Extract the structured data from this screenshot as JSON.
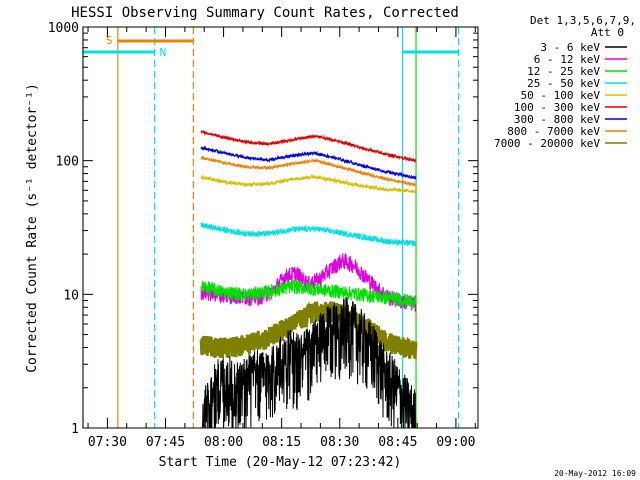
{
  "chart_data": {
    "type": "line",
    "title": "HESSI Observing Summary Count Rates, Corrected",
    "xlabel": "Start Time (20-May-12 07:23:42)",
    "ylabel": "Corrected Count Rate (s⁻¹ detector⁻¹)",
    "x_axis": {
      "unit": "minutes_since_07:23:42",
      "range": [
        0,
        102
      ],
      "ticks": [
        {
          "label": "07:30",
          "value": 6.3
        },
        {
          "label": "07:45",
          "value": 21.3
        },
        {
          "label": "08:00",
          "value": 36.3
        },
        {
          "label": "08:15",
          "value": 51.3
        },
        {
          "label": "08:30",
          "value": 66.3
        },
        {
          "label": "08:45",
          "value": 81.3
        },
        {
          "label": "09:00",
          "value": 96.3
        }
      ]
    },
    "y_axis": {
      "scale": "log",
      "range": [
        1,
        1000
      ],
      "ticks": [
        {
          "label": "1",
          "value": 1
        },
        {
          "label": "10",
          "value": 10
        },
        {
          "label": "100",
          "value": 100
        },
        {
          "label": "1000",
          "value": 1000
        }
      ]
    },
    "legend": {
      "placement": "right",
      "header": [
        "Det 1,3,5,6,7,9,",
        "Att 0"
      ],
      "entries": [
        {
          "label": "3 - 6 keV",
          "color": "#000000"
        },
        {
          "label": "6 - 12 keV",
          "color": "#e000e0"
        },
        {
          "label": "12 - 25 keV",
          "color": "#00e000"
        },
        {
          "label": "25 - 50 keV",
          "color": "#00e0e0"
        },
        {
          "label": "50 - 100 keV",
          "color": "#d4c000"
        },
        {
          "label": "100 - 300 keV",
          "color": "#e00000"
        },
        {
          "label": "300 - 800 keV",
          "color": "#0000e0"
        },
        {
          "label": "800 - 7000 keV",
          "color": "#f08000"
        },
        {
          "label": "7000 - 20000 keV",
          "color": "#808000"
        }
      ]
    },
    "annotations": {
      "saa_label": "S",
      "night_label": "N",
      "saa": {
        "start": 9.0,
        "end": 28.5,
        "color": "#f08000"
      },
      "night_segments": [
        [
          0,
          18.5
        ],
        [
          82.5,
          97.0
        ]
      ],
      "night_level": 650,
      "night_color": "#00e0e0",
      "vertical_markers": [
        {
          "x": 9.0,
          "style": "solid",
          "color": "#f08000"
        },
        {
          "x": 28.5,
          "style": "dashed",
          "color": "#f08000"
        },
        {
          "x": 18.5,
          "style": "dashed",
          "color": "#00e0e0"
        },
        {
          "x": 82.5,
          "style": "solid",
          "color": "#00e0e0"
        },
        {
          "x": 97.0,
          "style": "dashed",
          "color": "#00e0e0"
        },
        {
          "x": 0.0,
          "style": "solid",
          "color": "#00e0e0"
        },
        {
          "x": 86.0,
          "style": "solid",
          "color": "#00e000"
        }
      ]
    },
    "data_window": {
      "start": 30.5,
      "end": 86.0
    },
    "series": [
      {
        "name": "3 - 6 keV",
        "color": "#000000",
        "noise": 0.6,
        "x": [
          30.5,
          33,
          36,
          40,
          44,
          47,
          50,
          53,
          56,
          59,
          62,
          65,
          68,
          71,
          74,
          76,
          78,
          81,
          83,
          86
        ],
        "y": [
          1.0,
          1.7,
          2.3,
          2.0,
          2.4,
          2.5,
          2.8,
          3.5,
          3.2,
          3.8,
          4.8,
          5.5,
          6.0,
          5.2,
          4.0,
          3.5,
          2.5,
          2.0,
          1.6,
          1.2
        ]
      },
      {
        "name": "6 - 12 keV",
        "color": "#e000e0",
        "noise": 0.14,
        "x": [
          30.5,
          35,
          40,
          45,
          49,
          52,
          55,
          58,
          61,
          64,
          67,
          70,
          73,
          76,
          79,
          82,
          86
        ],
        "y": [
          10.5,
          10.0,
          9.6,
          9.5,
          10.5,
          13.5,
          14.5,
          12.0,
          13.0,
          15.5,
          18.0,
          16.5,
          13.5,
          11.0,
          9.5,
          9.0,
          8.5
        ]
      },
      {
        "name": "12 - 25 keV",
        "color": "#00e000",
        "noise": 0.12,
        "x": [
          30.5,
          36,
          42,
          48,
          54,
          60,
          66,
          72,
          78,
          86
        ],
        "y": [
          11.5,
          10.5,
          10.0,
          10.5,
          11.5,
          11.0,
          10.5,
          10.0,
          9.5,
          8.8
        ]
      },
      {
        "name": "25 - 50 keV",
        "color": "#00e0e0",
        "noise": 0.05,
        "x": [
          30.5,
          36,
          42,
          48,
          54,
          60,
          66,
          72,
          78,
          86
        ],
        "y": [
          33,
          30.5,
          28.5,
          28.5,
          30.5,
          31.0,
          29.0,
          27.0,
          25.0,
          24.0
        ]
      },
      {
        "name": "50 - 100 keV",
        "color": "#d4c000",
        "noise": 0.03,
        "x": [
          30.5,
          36,
          42,
          48,
          54,
          60,
          66,
          72,
          78,
          86
        ],
        "y": [
          75,
          70,
          66,
          67,
          73,
          76,
          70,
          65,
          61,
          59
        ]
      },
      {
        "name": "100 - 300 keV",
        "color": "#e00000",
        "noise": 0.025,
        "x": [
          30.5,
          36,
          42,
          48,
          54,
          60,
          66,
          72,
          78,
          86
        ],
        "y": [
          165,
          150,
          138,
          133,
          143,
          153,
          140,
          124,
          112,
          100
        ]
      },
      {
        "name": "300 - 800 keV",
        "color": "#0000e0",
        "noise": 0.025,
        "x": [
          30.5,
          36,
          42,
          48,
          54,
          60,
          66,
          72,
          78,
          86
        ],
        "y": [
          125,
          115,
          105,
          101,
          109,
          114,
          103,
          92,
          83,
          74
        ]
      },
      {
        "name": "800 - 7000 keV",
        "color": "#f08000",
        "noise": 0.025,
        "x": [
          30.5,
          36,
          42,
          48,
          54,
          60,
          66,
          72,
          78,
          86
        ],
        "y": [
          105,
          97,
          90,
          88,
          95,
          100,
          90,
          81,
          73,
          66
        ]
      },
      {
        "name": "7000 - 20000 keV",
        "color": "#808000",
        "noise": 0.18,
        "x": [
          30.5,
          36,
          42,
          48,
          54,
          60,
          66,
          72,
          78,
          86
        ],
        "y": [
          4.2,
          4.0,
          4.2,
          4.8,
          6.0,
          7.5,
          7.5,
          6.0,
          4.5,
          3.8
        ]
      }
    ]
  },
  "footer": {
    "timestamp": "20-May-2012 16:09"
  }
}
